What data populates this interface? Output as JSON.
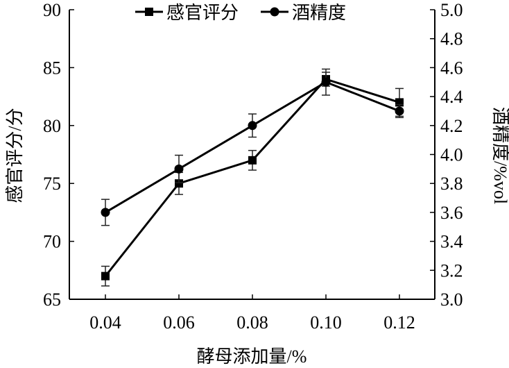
{
  "chart_data": {
    "type": "line",
    "title": "",
    "xlabel": "酵母添加量/%",
    "ylabel_left": "感官评分/分",
    "ylabel_right": "酒精度/%vol",
    "x": [
      0.04,
      0.06,
      0.08,
      0.1,
      0.12
    ],
    "x_tick_labels": [
      "0.04",
      "0.06",
      "0.08",
      "0.10",
      "0.12"
    ],
    "ylim_left": [
      65,
      90
    ],
    "ylim_right": [
      3.0,
      5.0
    ],
    "y_left_ticks": [
      "65",
      "70",
      "75",
      "80",
      "85",
      "90"
    ],
    "y_right_ticks": [
      "3.0",
      "3.2",
      "3.4",
      "3.6",
      "3.8",
      "4.0",
      "4.2",
      "4.4",
      "4.6",
      "4.8",
      "5.0"
    ],
    "grid": false,
    "legend_position": "top-center",
    "series": [
      {
        "name": "感官评分",
        "axis": "left",
        "marker": "square",
        "values": [
          67,
          75,
          77,
          84,
          82
        ],
        "errors": [
          0.85,
          0.95,
          0.85,
          0.6,
          1.2
        ]
      },
      {
        "name": "酒精度",
        "axis": "right",
        "marker": "circle",
        "values": [
          3.6,
          3.9,
          4.2,
          4.5,
          4.3
        ],
        "errors": [
          0.09,
          0.095,
          0.08,
          0.09,
          0.045
        ]
      }
    ]
  }
}
